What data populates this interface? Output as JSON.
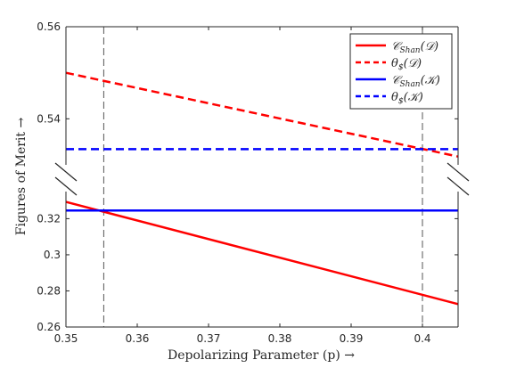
{
  "chart_data": {
    "type": "line",
    "title": "",
    "xlabel": "Depolarizing Parameter (p) →",
    "ylabel": "Figures of Merit →",
    "xlim": [
      0.35,
      0.405
    ],
    "y_axis_break": true,
    "ylim_upper_panel": [
      0.53,
      0.56
    ],
    "ylim_lower_panel": [
      0.26,
      0.335
    ],
    "x_ticks": [
      "0.35",
      "0.36",
      "0.37",
      "0.38",
      "0.39",
      "0.4"
    ],
    "y_ticks_upper": [
      "0.56",
      "0.54"
    ],
    "y_ticks_lower": [
      "0.32",
      "0.3",
      "0.28",
      "0.26"
    ],
    "grid": false,
    "legend_position": "top-right",
    "vertical_reference_lines_x": [
      0.3553,
      0.4
    ],
    "series": [
      {
        "name": "𝒞Shan(𝒟)",
        "label_main": "𝒞",
        "label_sub": "Shan",
        "label_arg": "(𝒟)",
        "color": "#ff0000",
        "style": "solid",
        "panel": "lower",
        "x": [
          0.35,
          0.405
        ],
        "y": [
          0.3293,
          0.2727
        ]
      },
      {
        "name": "θ$(𝒟)",
        "label_main": "θ",
        "label_sub": "$",
        "label_arg": "(𝒟)",
        "color": "#ff0000",
        "style": "dashed",
        "panel": "upper",
        "x": [
          0.35,
          0.405
        ],
        "y": [
          0.55,
          0.5318
        ]
      },
      {
        "name": "𝒞Shan(𝒦)",
        "label_main": "𝒞",
        "label_sub": "Shan",
        "label_arg": "(𝒦)",
        "color": "#0000ff",
        "style": "solid",
        "panel": "lower",
        "x": [
          0.35,
          0.405
        ],
        "y": [
          0.3245,
          0.3245
        ]
      },
      {
        "name": "θ$(𝒦)",
        "label_main": "θ",
        "label_sub": "$",
        "label_arg": "(𝒦)",
        "color": "#0000ff",
        "style": "dashed",
        "panel": "upper",
        "x": [
          0.35,
          0.405
        ],
        "y": [
          0.5334,
          0.5334
        ]
      }
    ]
  }
}
